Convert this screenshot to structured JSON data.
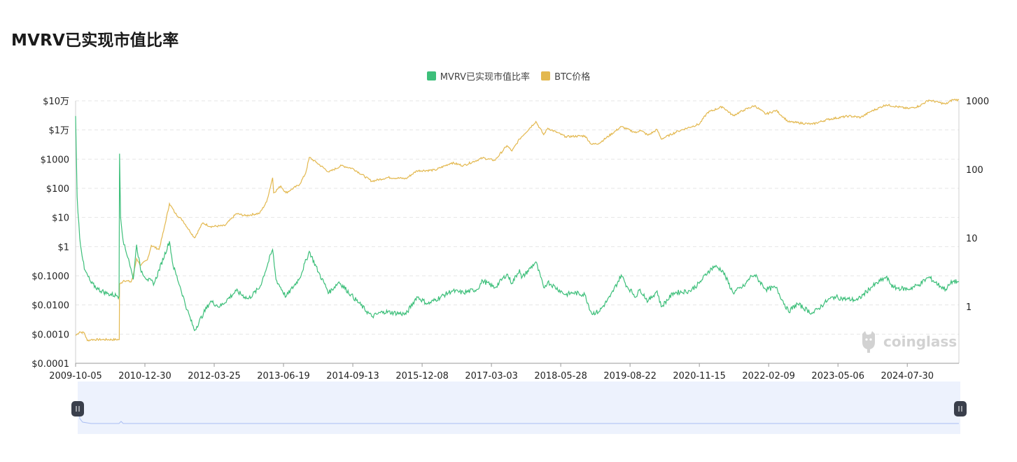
{
  "page": {
    "title": "MVRV已实现市值比率",
    "watermark": "coinglass"
  },
  "legend": [
    {
      "label": "MVRV已实现市值比率",
      "color": "#3dbf7a",
      "icon": "square-swatch"
    },
    {
      "label": "BTC价格",
      "color": "#e3b84f",
      "icon": "square-swatch"
    }
  ],
  "colors": {
    "mvrv": "#3dbf7a",
    "btc": "#e3b84f",
    "grid": "#e6e6e6",
    "zoom_bg": "#edf2fd",
    "zoom_handle": "#3a3f4b",
    "zoom_line": "#a9bdf2"
  },
  "chart_data": {
    "type": "line",
    "title": "MVRV已实现市值比率",
    "x_tick_labels": [
      "2009-10-05",
      "2010-12-30",
      "2012-03-25",
      "2013-06-19",
      "2014-09-13",
      "2015-12-08",
      "2017-03-03",
      "2018-05-28",
      "2019-08-22",
      "2020-11-15",
      "2022-02-09",
      "2023-05-06",
      "2024-07-30"
    ],
    "x_range": [
      "2009-10-05",
      "2025-07-01"
    ],
    "left_axis": {
      "scale": "log",
      "range": [
        0.0001,
        100000
      ],
      "tick_labels": [
        "$0.0001",
        "$0.0010",
        "$0.0100",
        "$0.1000",
        "$1",
        "$10",
        "$100",
        "$1000",
        "$1万",
        "$10万"
      ]
    },
    "right_axis": {
      "scale": "log",
      "range": [
        0.15,
        1000
      ],
      "tick_labels": [
        "1",
        "10",
        "100",
        "1000"
      ]
    },
    "grid": true,
    "legend_position": "top-center",
    "series": [
      {
        "name": "MVRV已实现市值比率",
        "axis": "right",
        "color": "#3dbf7a",
        "points": [
          [
            "2009-10-05",
            600
          ],
          [
            "2009-10-15",
            40
          ],
          [
            "2009-11-01",
            10
          ],
          [
            "2009-12-01",
            3.5
          ],
          [
            "2010-01-15",
            2.2
          ],
          [
            "2010-03-01",
            1.8
          ],
          [
            "2010-05-01",
            1.55
          ],
          [
            "2010-07-01",
            1.45
          ],
          [
            "2010-07-15",
            1.42
          ],
          [
            "2010-07-18",
            170
          ],
          [
            "2010-07-25",
            20
          ],
          [
            "2010-08-15",
            8
          ],
          [
            "2010-09-15",
            5
          ],
          [
            "2010-10-15",
            2.5
          ],
          [
            "2010-11-06",
            8
          ],
          [
            "2010-12-01",
            3.5
          ],
          [
            "2011-01-15",
            2.5
          ],
          [
            "2011-03-01",
            2.2
          ],
          [
            "2011-06-08",
            9
          ],
          [
            "2011-07-01",
            4
          ],
          [
            "2011-08-15",
            2
          ],
          [
            "2011-10-01",
            0.9
          ],
          [
            "2011-11-18",
            0.45
          ],
          [
            "2012-01-15",
            0.8
          ],
          [
            "2012-03-01",
            1.2
          ],
          [
            "2012-05-01",
            1.0
          ],
          [
            "2012-08-15",
            1.7
          ],
          [
            "2012-11-01",
            1.3
          ],
          [
            "2013-01-15",
            1.9
          ],
          [
            "2013-04-09",
            6.8
          ],
          [
            "2013-05-01",
            2.5
          ],
          [
            "2013-07-05",
            1.4
          ],
          [
            "2013-10-01",
            2.6
          ],
          [
            "2013-12-04",
            6.4
          ],
          [
            "2014-02-01",
            3.2
          ],
          [
            "2014-04-11",
            1.6
          ],
          [
            "2014-06-15",
            2.3
          ],
          [
            "2014-09-01",
            1.5
          ],
          [
            "2015-01-14",
            0.72
          ],
          [
            "2015-04-01",
            0.85
          ],
          [
            "2015-08-25",
            0.78
          ],
          [
            "2015-11-04",
            1.4
          ],
          [
            "2016-01-15",
            1.1
          ],
          [
            "2016-06-17",
            1.7
          ],
          [
            "2016-09-01",
            1.6
          ],
          [
            "2016-12-01",
            1.8
          ],
          [
            "2017-01-05",
            2.4
          ],
          [
            "2017-03-25",
            1.9
          ],
          [
            "2017-06-12",
            3.0
          ],
          [
            "2017-07-15",
            2.2
          ],
          [
            "2017-09-02",
            3.5
          ],
          [
            "2017-09-15",
            2.6
          ],
          [
            "2017-12-17",
            4.5
          ],
          [
            "2018-02-06",
            1.9
          ],
          [
            "2018-03-05",
            2.3
          ],
          [
            "2018-06-29",
            1.5
          ],
          [
            "2018-08-15",
            1.6
          ],
          [
            "2018-11-01",
            1.5
          ],
          [
            "2018-12-15",
            0.8
          ],
          [
            "2019-02-01",
            0.85
          ],
          [
            "2019-04-15",
            1.4
          ],
          [
            "2019-06-26",
            2.9
          ],
          [
            "2019-08-01",
            2.0
          ],
          [
            "2019-09-30",
            1.4
          ],
          [
            "2019-10-26",
            1.8
          ],
          [
            "2019-12-17",
            1.2
          ],
          [
            "2020-02-14",
            1.7
          ],
          [
            "2020-03-12",
            1.0
          ],
          [
            "2020-06-01",
            1.6
          ],
          [
            "2020-09-15",
            1.7
          ],
          [
            "2020-11-15",
            2.2
          ],
          [
            "2021-01-08",
            3.2
          ],
          [
            "2021-02-21",
            3.9
          ],
          [
            "2021-04-14",
            3.4
          ],
          [
            "2021-06-22",
            1.6
          ],
          [
            "2021-09-01",
            2.0
          ],
          [
            "2021-10-20",
            2.8
          ],
          [
            "2021-11-10",
            2.9
          ],
          [
            "2022-01-22",
            1.8
          ],
          [
            "2022-03-29",
            1.9
          ],
          [
            "2022-06-18",
            0.85
          ],
          [
            "2022-08-15",
            1.1
          ],
          [
            "2022-11-21",
            0.8
          ],
          [
            "2023-01-01",
            0.95
          ],
          [
            "2023-03-01",
            1.25
          ],
          [
            "2023-04-14",
            1.4
          ],
          [
            "2023-06-15",
            1.3
          ],
          [
            "2023-09-11",
            1.25
          ],
          [
            "2023-12-05",
            1.9
          ],
          [
            "2024-03-14",
            2.7
          ],
          [
            "2024-05-01",
            1.9
          ],
          [
            "2024-08-05",
            1.8
          ],
          [
            "2024-10-15",
            2.1
          ],
          [
            "2024-12-17",
            2.7
          ],
          [
            "2025-03-01",
            2.0
          ],
          [
            "2025-04-07",
            1.8
          ],
          [
            "2025-05-22",
            2.35
          ],
          [
            "2025-07-01",
            2.3
          ]
        ]
      },
      {
        "name": "BTC价格",
        "axis": "left",
        "color": "#e3b84f",
        "points": [
          [
            "2009-10-05",
            0.0009
          ],
          [
            "2009-11-01",
            0.0012
          ],
          [
            "2009-12-01",
            0.0011
          ],
          [
            "2009-12-20",
            0.0006
          ],
          [
            "2010-01-15",
            0.00065
          ],
          [
            "2010-04-01",
            0.00065
          ],
          [
            "2010-07-16",
            0.00065
          ],
          [
            "2010-07-18",
            0.05
          ],
          [
            "2010-08-15",
            0.07
          ],
          [
            "2010-10-01",
            0.062
          ],
          [
            "2010-10-15",
            0.1
          ],
          [
            "2010-11-06",
            0.39
          ],
          [
            "2010-12-01",
            0.23
          ],
          [
            "2011-01-15",
            0.35
          ],
          [
            "2011-02-10",
            1.1
          ],
          [
            "2011-04-01",
            0.8
          ],
          [
            "2011-05-01",
            3.5
          ],
          [
            "2011-06-08",
            30
          ],
          [
            "2011-07-15",
            14
          ],
          [
            "2011-09-01",
            8
          ],
          [
            "2011-11-18",
            2.0
          ],
          [
            "2012-01-10",
            6.5
          ],
          [
            "2012-03-01",
            4.9
          ],
          [
            "2012-06-01",
            5.2
          ],
          [
            "2012-08-16",
            13.5
          ],
          [
            "2012-10-15",
            11.5
          ],
          [
            "2013-01-15",
            14
          ],
          [
            "2013-03-01",
            34
          ],
          [
            "2013-04-09",
            230
          ],
          [
            "2013-04-16",
            70
          ],
          [
            "2013-06-01",
            120
          ],
          [
            "2013-07-05",
            70
          ],
          [
            "2013-10-01",
            135
          ],
          [
            "2013-11-10",
            330
          ],
          [
            "2013-12-04",
            1150
          ],
          [
            "2014-01-15",
            800
          ],
          [
            "2014-04-11",
            360
          ],
          [
            "2014-07-01",
            600
          ],
          [
            "2014-09-15",
            470
          ],
          [
            "2015-01-14",
            175
          ],
          [
            "2015-05-01",
            235
          ],
          [
            "2015-08-25",
            215
          ],
          [
            "2015-11-04",
            400
          ],
          [
            "2016-03-01",
            420
          ],
          [
            "2016-06-17",
            750
          ],
          [
            "2016-09-01",
            600
          ],
          [
            "2017-01-05",
            1100
          ],
          [
            "2017-03-25",
            900
          ],
          [
            "2017-06-12",
            2900
          ],
          [
            "2017-07-15",
            1900
          ],
          [
            "2017-09-02",
            4900
          ],
          [
            "2017-12-17",
            19500
          ],
          [
            "2018-02-06",
            6900
          ],
          [
            "2018-03-05",
            11500
          ],
          [
            "2018-06-29",
            5900
          ],
          [
            "2018-11-01",
            6300
          ],
          [
            "2018-12-15",
            3200
          ],
          [
            "2019-02-01",
            3500
          ],
          [
            "2019-06-26",
            13000
          ],
          [
            "2019-09-30",
            8000
          ],
          [
            "2019-10-26",
            10000
          ],
          [
            "2019-12-17",
            6600
          ],
          [
            "2020-02-14",
            10300
          ],
          [
            "2020-03-12",
            4900
          ],
          [
            "2020-07-01",
            9200
          ],
          [
            "2020-11-15",
            16000
          ],
          [
            "2021-01-08",
            40000
          ],
          [
            "2021-04-14",
            63000
          ],
          [
            "2021-06-22",
            31000
          ],
          [
            "2021-09-01",
            48000
          ],
          [
            "2021-11-10",
            68000
          ],
          [
            "2022-01-22",
            35000
          ],
          [
            "2022-03-29",
            47000
          ],
          [
            "2022-06-18",
            19000
          ],
          [
            "2022-11-21",
            15800
          ],
          [
            "2023-03-01",
            23000
          ],
          [
            "2023-07-15",
            30000
          ],
          [
            "2023-10-01",
            27000
          ],
          [
            "2023-12-05",
            43000
          ],
          [
            "2024-03-14",
            73000
          ],
          [
            "2024-08-05",
            54000
          ],
          [
            "2024-10-15",
            66000
          ],
          [
            "2024-12-17",
            106000
          ],
          [
            "2025-03-01",
            86000
          ],
          [
            "2025-04-07",
            77000
          ],
          [
            "2025-05-22",
            110000
          ],
          [
            "2025-07-01",
            107000
          ]
        ]
      }
    ]
  }
}
